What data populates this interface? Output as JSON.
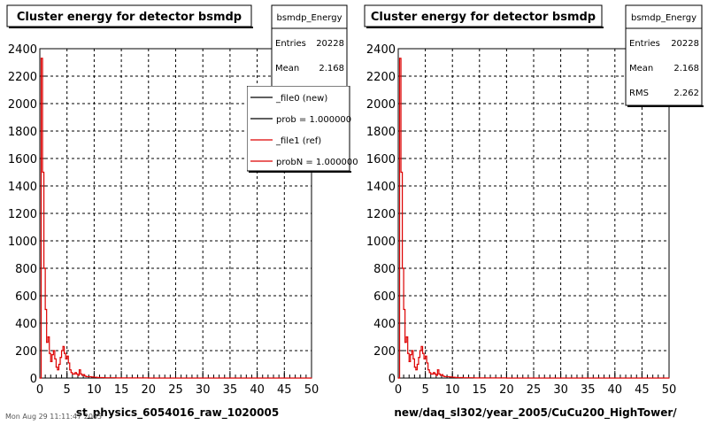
{
  "footer_text": "Mon Aug 29 11:11:47 2005",
  "chart_data": [
    {
      "type": "line",
      "title": "Cluster energy for detector bsmdp",
      "xlabel": "st_physics_6054016_raw_1020005",
      "ylabel": "",
      "xlim": [
        0,
        50
      ],
      "ylim": [
        0,
        2400
      ],
      "xticks": [
        "0",
        "5",
        "10",
        "15",
        "20",
        "25",
        "30",
        "35",
        "40",
        "45",
        "50"
      ],
      "yticks": [
        "0",
        "200",
        "400",
        "600",
        "800",
        "1000",
        "1200",
        "1400",
        "1600",
        "1800",
        "2000",
        "2200",
        "2400"
      ],
      "grid": true,
      "stats": {
        "name": "bsmdp_Energy",
        "rows": [
          {
            "label": "Entries",
            "value": "20228"
          },
          {
            "label": "Mean",
            "value": "2.168"
          }
        ]
      },
      "legend": {
        "placement": "top-right",
        "entries": [
          {
            "label": "_file0 (new)",
            "color": "#000000"
          },
          {
            "label": "prob = 1.000000",
            "color": "#000000"
          },
          {
            "label": "_file1 (ref)",
            "color": "#dd0000"
          },
          {
            "label": "probN = 1.000000",
            "color": "#dd0000"
          }
        ]
      },
      "series": [
        {
          "color": "#dd0000",
          "x": [
            0.0,
            0.25,
            0.5,
            0.75,
            1.0,
            1.25,
            1.5,
            1.75,
            2.0,
            2.25,
            2.5,
            2.75,
            3.0,
            3.25,
            3.5,
            3.75,
            4.0,
            4.25,
            4.5,
            4.75,
            5.0,
            5.25,
            5.5,
            5.75,
            6.0,
            6.25,
            6.5,
            6.75,
            7.0,
            7.25,
            7.5,
            7.75,
            8.0,
            8.25,
            8.5,
            8.75,
            9.0,
            9.5,
            10.0,
            10.5,
            11.0,
            12.0,
            13.0,
            14.0,
            15.0,
            20.0,
            30.0,
            40.0,
            50.0
          ],
          "y": [
            0,
            2330,
            1500,
            800,
            500,
            260,
            300,
            180,
            120,
            170,
            200,
            140,
            80,
            60,
            100,
            150,
            200,
            230,
            180,
            140,
            160,
            110,
            60,
            40,
            30,
            30,
            40,
            30,
            20,
            60,
            30,
            20,
            25,
            15,
            10,
            10,
            10,
            8,
            6,
            4,
            3,
            2,
            2,
            1,
            1,
            0,
            0,
            0,
            0
          ]
        }
      ]
    },
    {
      "type": "line",
      "title": "Cluster energy for detector bsmdp",
      "xlabel": "new/daq_sl302/year_2005/CuCu200_HighTower/",
      "ylabel": "",
      "xlim": [
        0,
        50
      ],
      "ylim": [
        0,
        2400
      ],
      "xticks": [
        "0",
        "5",
        "10",
        "15",
        "20",
        "25",
        "30",
        "35",
        "40",
        "45",
        "50"
      ],
      "yticks": [
        "0",
        "200",
        "400",
        "600",
        "800",
        "1000",
        "1200",
        "1400",
        "1600",
        "1800",
        "2000",
        "2200",
        "2400"
      ],
      "grid": true,
      "stats": {
        "name": "bsmdp_Energy",
        "rows": [
          {
            "label": "Entries",
            "value": "20228"
          },
          {
            "label": "Mean",
            "value": "2.168"
          },
          {
            "label": "RMS",
            "value": "2.262"
          }
        ]
      },
      "series": [
        {
          "color": "#dd0000",
          "x": [
            0.0,
            0.25,
            0.5,
            0.75,
            1.0,
            1.25,
            1.5,
            1.75,
            2.0,
            2.25,
            2.5,
            2.75,
            3.0,
            3.25,
            3.5,
            3.75,
            4.0,
            4.25,
            4.5,
            4.75,
            5.0,
            5.25,
            5.5,
            5.75,
            6.0,
            6.25,
            6.5,
            6.75,
            7.0,
            7.25,
            7.5,
            7.75,
            8.0,
            8.25,
            8.5,
            8.75,
            9.0,
            9.5,
            10.0,
            10.5,
            11.0,
            12.0,
            13.0,
            14.0,
            15.0,
            20.0,
            30.0,
            40.0,
            50.0
          ],
          "y": [
            0,
            2330,
            1500,
            800,
            500,
            260,
            300,
            180,
            120,
            170,
            200,
            140,
            80,
            60,
            100,
            150,
            200,
            230,
            180,
            140,
            160,
            110,
            60,
            40,
            30,
            30,
            40,
            30,
            20,
            60,
            30,
            20,
            25,
            15,
            10,
            10,
            10,
            8,
            6,
            4,
            3,
            2,
            2,
            1,
            1,
            0,
            0,
            0,
            0
          ]
        }
      ]
    }
  ]
}
